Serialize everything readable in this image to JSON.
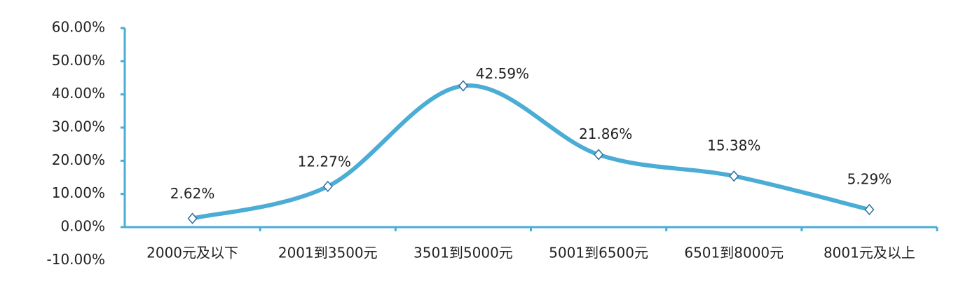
{
  "chart_data": {
    "type": "line",
    "categories": [
      "2000元及以下",
      "2001到3500元",
      "3501到5000元",
      "5001到6500元",
      "6501到8000元",
      "8001元及以上"
    ],
    "values": [
      2.62,
      12.27,
      42.59,
      21.86,
      15.38,
      5.29
    ],
    "value_labels": [
      "2.62%",
      "12.27%",
      "42.59%",
      "21.86%",
      "15.38%",
      "5.29%"
    ],
    "color": "#4bacd6",
    "smooth": true,
    "grid": false,
    "ylim": [
      -10,
      60
    ],
    "yticks": [
      {
        "value": -10,
        "label": "-10.00%"
      },
      {
        "value": 0,
        "label": "0.00%"
      },
      {
        "value": 10,
        "label": "10.00%"
      },
      {
        "value": 20,
        "label": "20.00%"
      },
      {
        "value": 30,
        "label": "30.00%"
      },
      {
        "value": 40,
        "label": "40.00%"
      },
      {
        "value": 50,
        "label": "50.00%"
      },
      {
        "value": 60,
        "label": "60.00%"
      }
    ]
  }
}
